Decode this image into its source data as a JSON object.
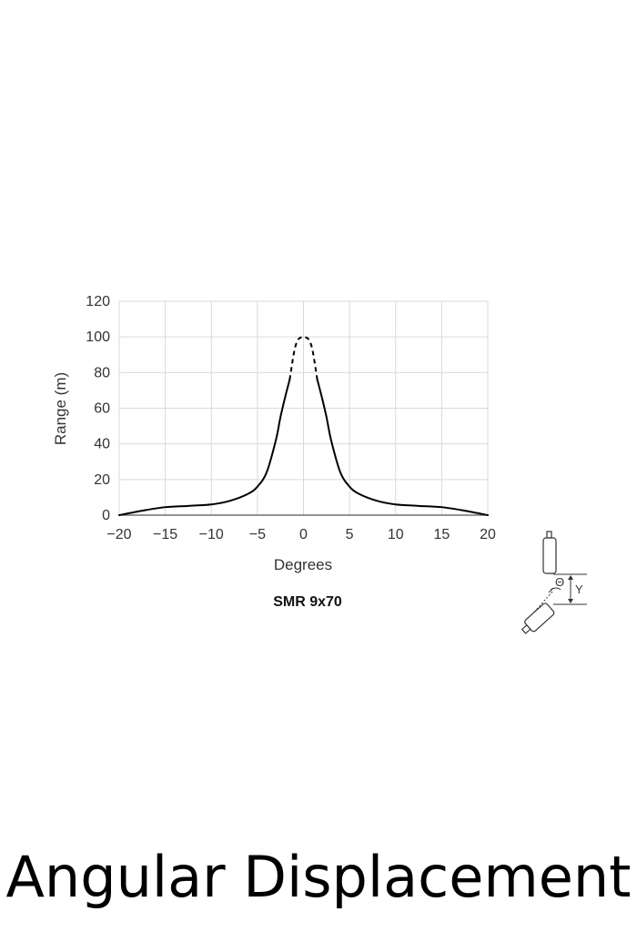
{
  "chart_data": {
    "type": "line",
    "title": "SMR 9x70",
    "xlabel": "Degrees",
    "ylabel": "Range (m)",
    "xlim": [
      -20,
      20
    ],
    "ylim": [
      0,
      120
    ],
    "xticks": [
      -20,
      -15,
      -10,
      -5,
      0,
      5,
      10,
      15,
      20
    ],
    "xtick_labels": [
      "−20",
      "−15",
      "−10",
      "−5",
      "0",
      "5",
      "10",
      "15",
      "20"
    ],
    "yticks": [
      0,
      20,
      40,
      60,
      80,
      100,
      120
    ],
    "ytick_labels": [
      "0",
      "20",
      "40",
      "60",
      "80",
      "100",
      "120"
    ],
    "grid": true,
    "series": [
      {
        "style": "solid",
        "x": [
          -20,
          -17.5,
          -15,
          -12.5,
          -10,
          -8,
          -6,
          -5,
          -4,
          -3,
          -2.5,
          -2,
          -1.5
        ],
        "y": [
          0,
          2.5,
          4.5,
          5.2,
          6,
          8,
          12,
          16,
          24,
          42,
          55,
          66,
          76
        ]
      },
      {
        "style": "dashed",
        "x": [
          -1.5,
          -1.2,
          -1,
          -0.8,
          -0.5,
          0,
          0.5,
          0.8,
          1,
          1.2,
          1.5
        ],
        "y": [
          76,
          86,
          92,
          96,
          99,
          100,
          99,
          96,
          92,
          86,
          76
        ]
      },
      {
        "style": "solid",
        "x": [
          1.5,
          2,
          2.5,
          3,
          4,
          5,
          6,
          8,
          10,
          12.5,
          15,
          17.5,
          20
        ],
        "y": [
          76,
          66,
          55,
          42,
          24,
          16,
          12,
          8,
          6,
          5.2,
          4.5,
          2.5,
          0
        ]
      }
    ]
  },
  "diagram": {
    "theta_symbol": "Θ",
    "y_symbol": "Y"
  },
  "footer": {
    "title": "Angular Displacement"
  }
}
